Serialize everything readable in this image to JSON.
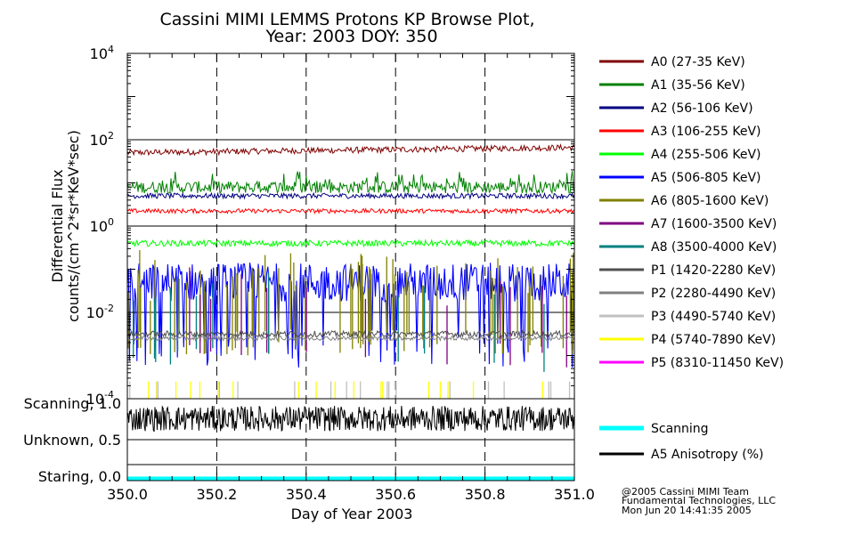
{
  "chart_data": {
    "type": "line",
    "title_line1": "Cassini MIMI LEMMS Protons KP Browse Plot,",
    "title_line2": "Year: 2003 DOY: 350",
    "xlabel": "Day of Year 2003",
    "ylabel_line1": "Differential Flux",
    "ylabel_line2": "counts/(cm^2*sr*KeV*sec)",
    "xlim": [
      350.0,
      351.0
    ],
    "x_ticks": [
      350.0,
      350.2,
      350.4,
      350.6,
      350.8,
      351.0
    ],
    "x_tick_labels": [
      "350.0",
      "350.2",
      "350.4",
      "350.6",
      "350.8",
      "351.0"
    ],
    "y_scale": "log",
    "ylim_log10": [
      -4,
      4
    ],
    "y_ticks": [
      {
        "base": "10",
        "exp": "4"
      },
      {
        "base": "10",
        "exp": "2"
      },
      {
        "base": "10",
        "exp": "0"
      },
      {
        "base": "10",
        "exp": "-2"
      },
      {
        "base": "10",
        "exp": "-4"
      }
    ],
    "series": [
      {
        "name": "A0 (27-35 KeV)",
        "color": "#800000",
        "typical_log10": 1.7
      },
      {
        "name": "A1 (35-56 KeV)",
        "color": "#008000",
        "typical_log10": 0.9
      },
      {
        "name": "A2 (56-106 KeV)",
        "color": "#000080",
        "typical_log10": 0.7
      },
      {
        "name": "A3 (106-255 KeV)",
        "color": "#ff0000",
        "typical_log10": 0.35
      },
      {
        "name": "A4 (255-506 KeV)",
        "color": "#00ff00",
        "typical_log10": -0.4
      },
      {
        "name": "A5 (506-805 KeV)",
        "color": "#0000ff",
        "typical_log10": -1.3
      },
      {
        "name": "A6 (805-1600 KeV)",
        "color": "#808000",
        "typical_log10": -2.3
      },
      {
        "name": "A7 (1600-3500 KeV)",
        "color": "#800080",
        "typical_log10": -2.6
      },
      {
        "name": "A8 (3500-4000 KeV)",
        "color": "#008080",
        "typical_log10": -2.7
      },
      {
        "name": "P1 (1420-2280 KeV)",
        "color": "#505050",
        "typical_log10": -2.5
      },
      {
        "name": "P2 (2280-4490 KeV)",
        "color": "#808080",
        "typical_log10": -2.6
      },
      {
        "name": "P3 (4490-5740 KeV)",
        "color": "#c0c0c0",
        "typical_log10": -3.8
      },
      {
        "name": "P4 (5740-7890 KeV)",
        "color": "#ffff00",
        "typical_log10": -3.8
      },
      {
        "name": "P5 (8310-11450 KeV)",
        "color": "#ff00ff",
        "typical_log10": null
      }
    ],
    "lower_panel": {
      "y_labels": [
        "Scanning, 1.0",
        "Unknown, 0.5",
        "Staring, 0.0"
      ],
      "series": [
        {
          "name": "Scanning",
          "color": "#00ffff",
          "value": 0.0
        },
        {
          "name": "A5 Anisotropy (%)",
          "color": "#000000",
          "typical_value": 0.75
        }
      ]
    },
    "footer": [
      "@2005 Cassini MIMI Team",
      "Fundamental Technologies, LLC",
      "Mon Jun 20 14:41:35 2005"
    ]
  }
}
